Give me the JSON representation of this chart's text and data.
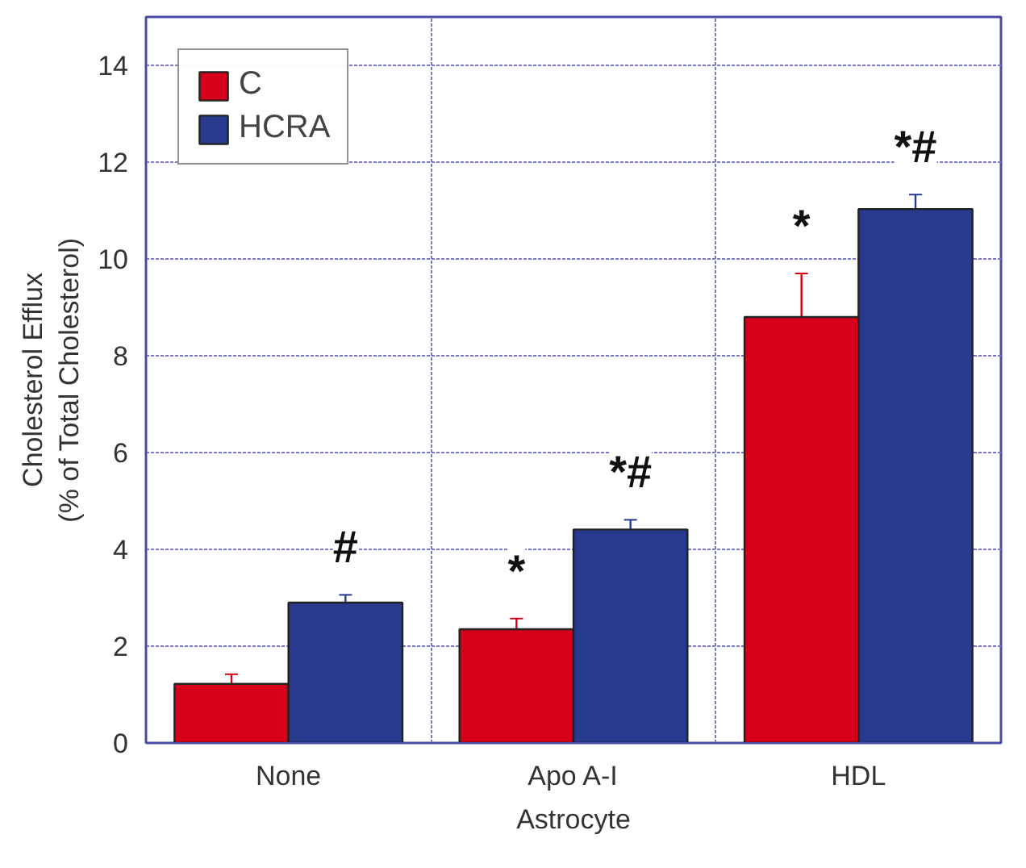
{
  "chart_data": {
    "type": "bar",
    "categories": [
      "None",
      "Apo A-I",
      "HDL"
    ],
    "series": [
      {
        "name": "C",
        "color": "#d7001a",
        "values": [
          1.22,
          2.35,
          8.8
        ],
        "errors": [
          0.2,
          0.22,
          0.9
        ]
      },
      {
        "name": "HCRA",
        "color": "#283a8e",
        "values": [
          2.9,
          4.41,
          11.03
        ],
        "errors": [
          0.16,
          0.2,
          0.3
        ]
      }
    ],
    "xlabel": "Astrocyte",
    "ylabel": "Cholesterol Efflux\n(% of Total Cholesterol)",
    "ylim": [
      0,
      15
    ],
    "yticks": [
      0,
      2,
      4,
      6,
      8,
      10,
      12,
      14
    ],
    "annotations": [
      {
        "text": "#",
        "x": "None",
        "y": 2.9
      },
      {
        "text": "*",
        "x": "Apo A-I",
        "y": 2.35
      },
      {
        "text": "*#",
        "x": "Apo A-I",
        "y": 4.41
      },
      {
        "text": "*",
        "x": "HDL",
        "y": 8.8
      },
      {
        "text": "*#",
        "x": "HDL",
        "y": 11.03
      }
    ],
    "grid": true,
    "legend": "top left"
  }
}
